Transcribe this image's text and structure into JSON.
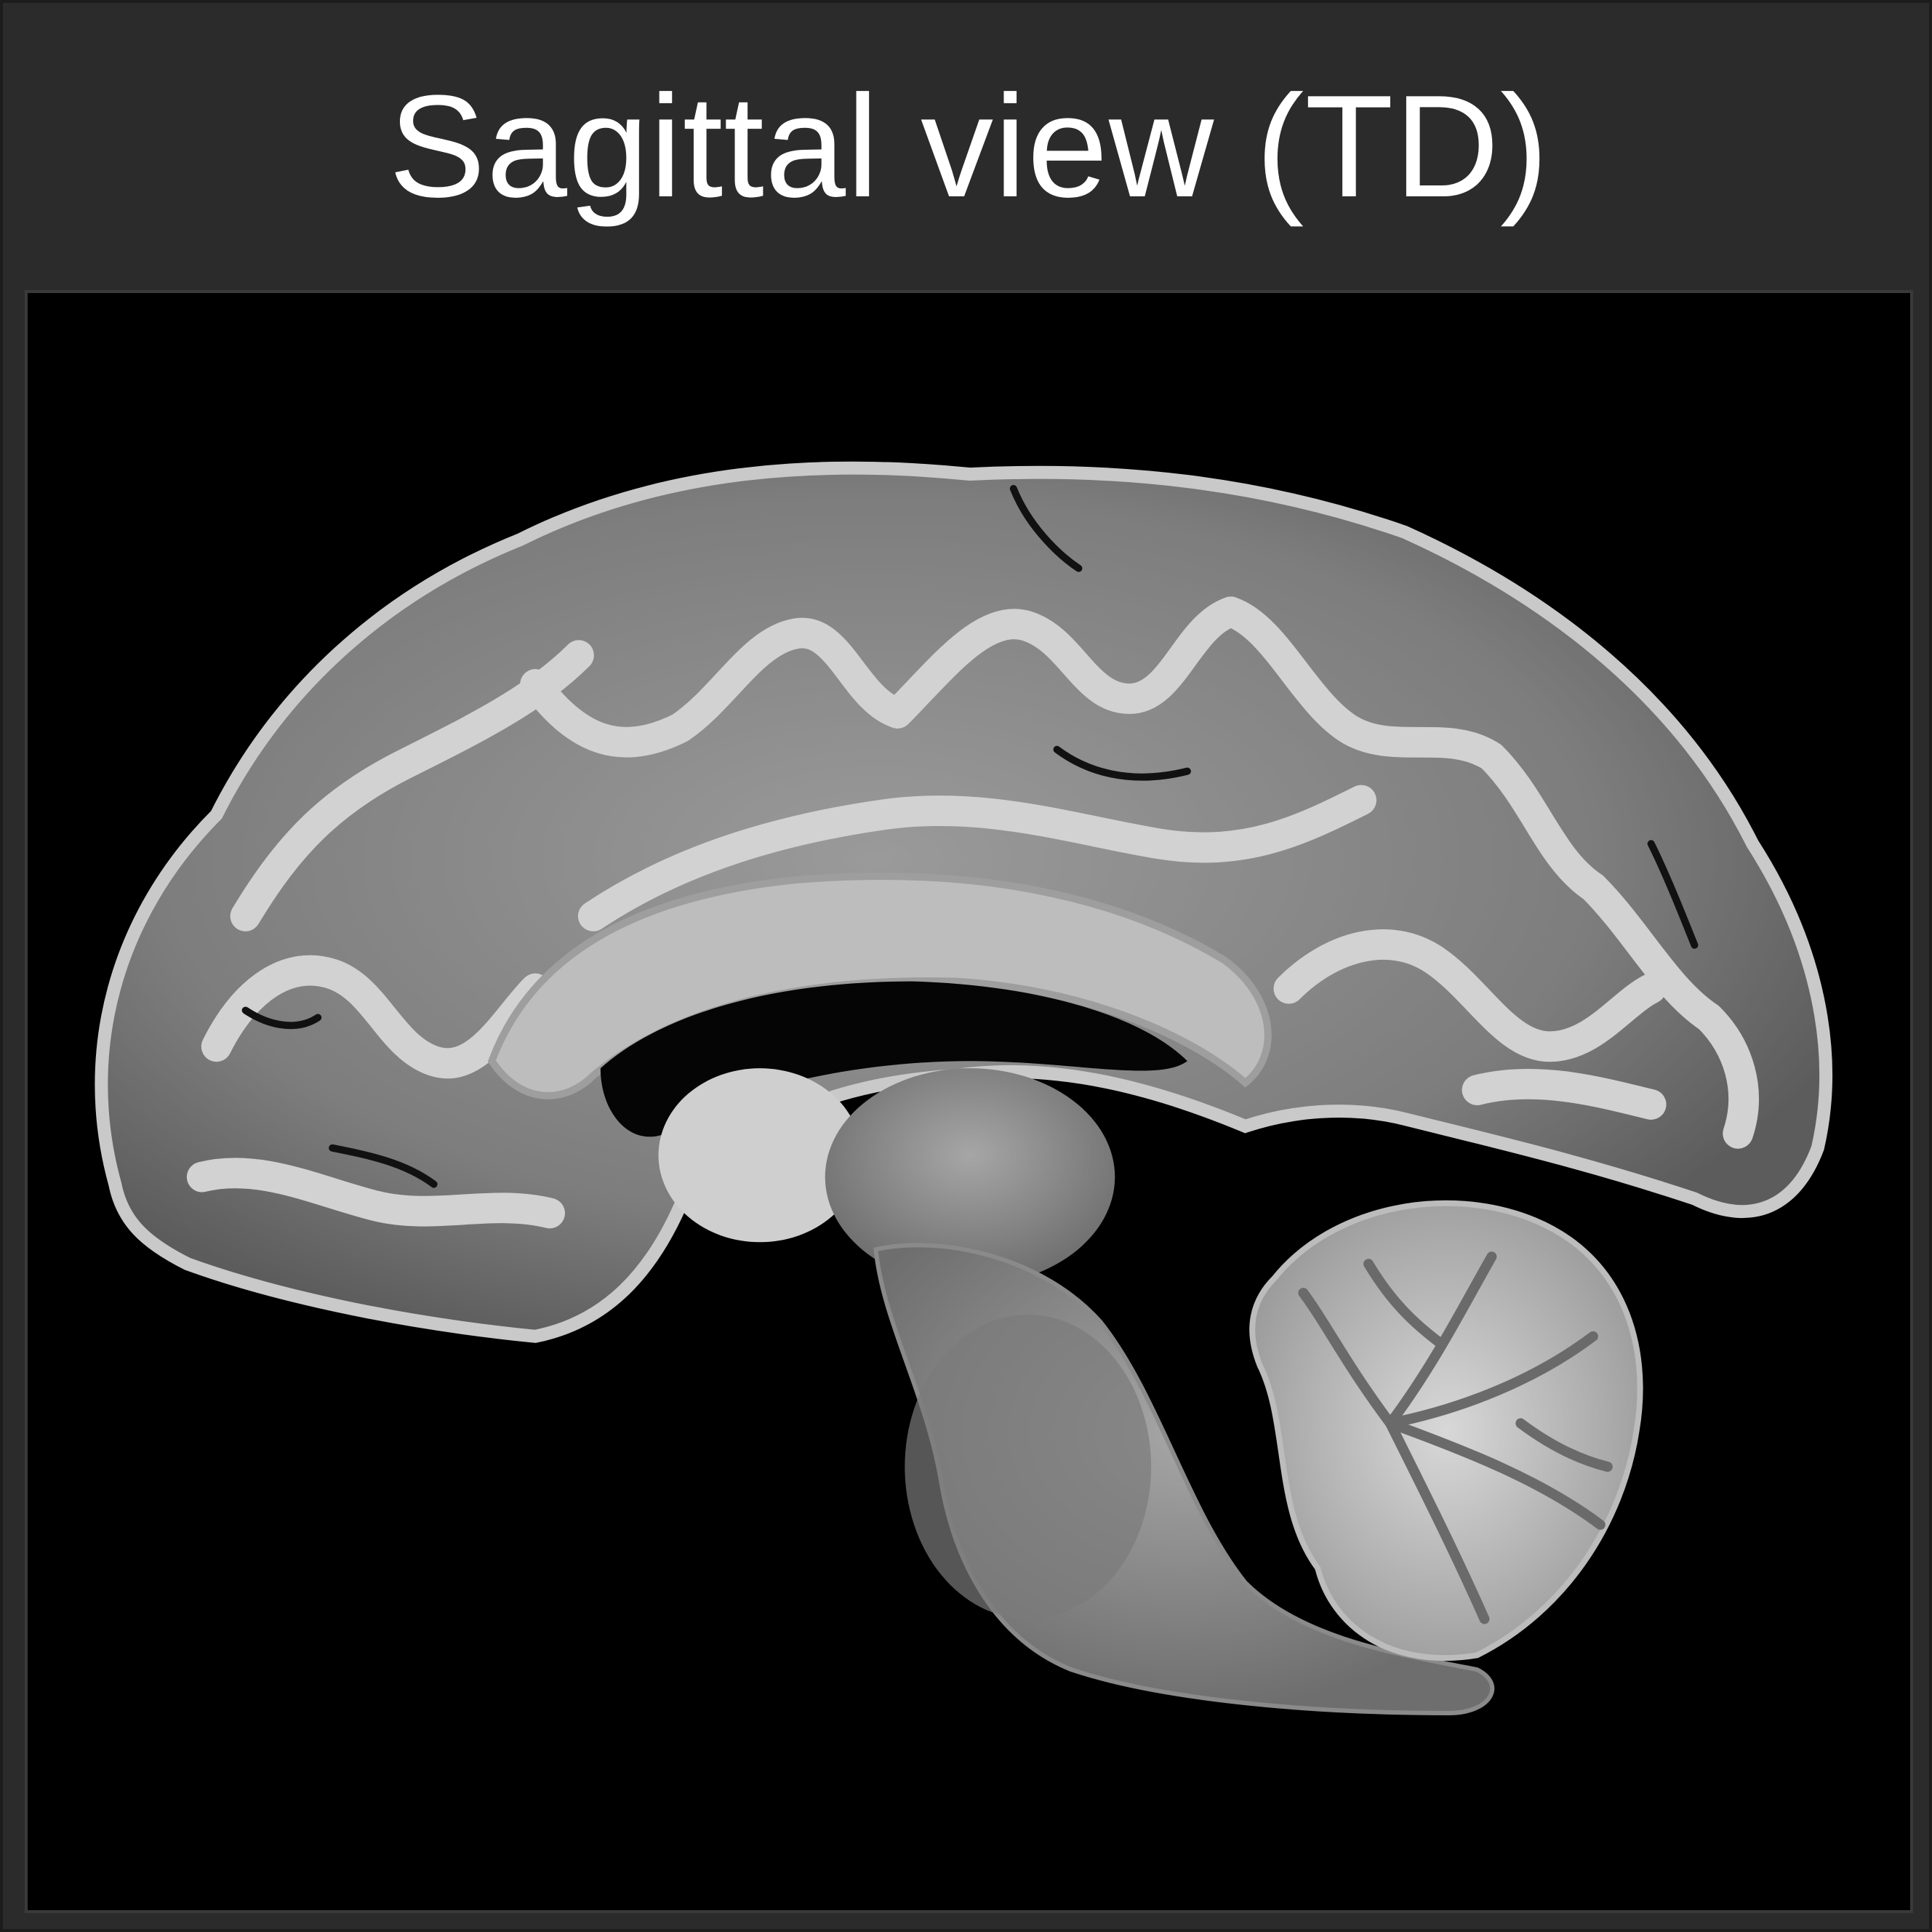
{
  "header": {
    "title": "Sagittal view (TD)"
  },
  "image": {
    "subject": "brain-mri-sagittal-slice",
    "colors": {
      "background": "#000000",
      "frame": "#2b2b2b",
      "cortex_gray": "#8a8a8a",
      "white_matter": "#cfcfcf",
      "title_text": "#ffffff"
    }
  }
}
